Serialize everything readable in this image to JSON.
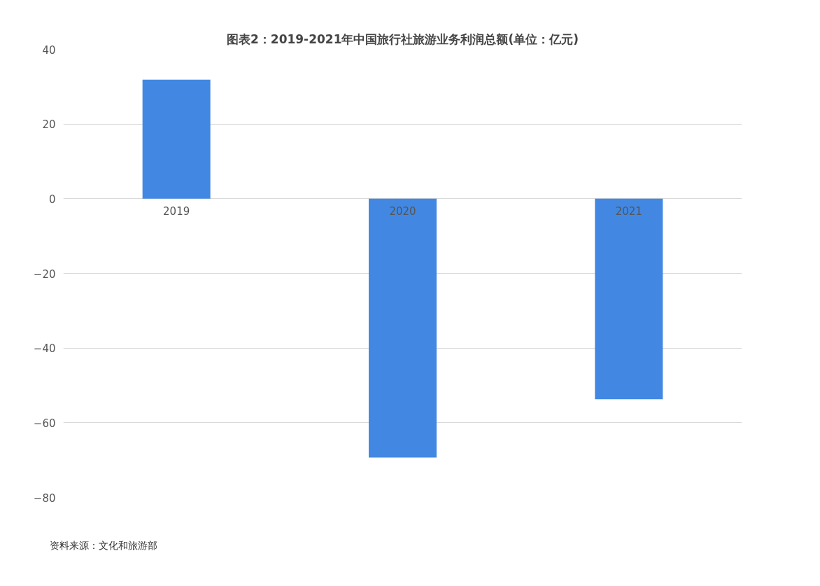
{
  "chart_data": {
    "type": "bar",
    "title": "图表2：2019-2021年中国旅行社旅游业务利润总额(单位：亿元)",
    "categories": [
      "2019",
      "2020",
      "2021"
    ],
    "series": [
      {
        "color": "#4288e2",
        "values": [
          31.9,
          -69.3,
          -53.7
        ]
      }
    ],
    "ylim": [
      -80,
      40
    ],
    "yticks": [
      -80,
      -60,
      -40,
      -20,
      0,
      20,
      40
    ],
    "grid": "y",
    "annotations": [
      "资料来源：文化和旅游部"
    ]
  }
}
